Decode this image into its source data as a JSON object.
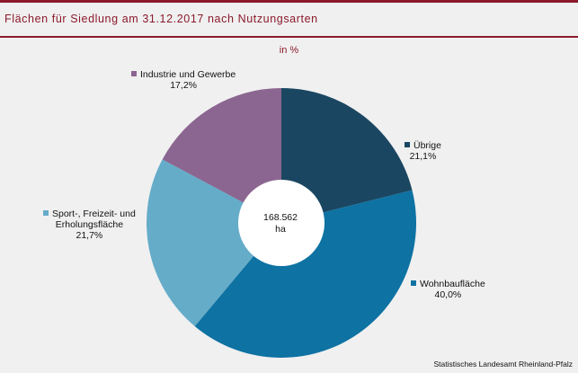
{
  "title": "Flächen für Siedlung  am 31.12.2017 nach Nutzungsarten",
  "source": "Statistisches Landesamt Rheinland-Pfalz",
  "center_label": {
    "value": "168.562",
    "unit": "ha"
  },
  "chart_data": {
    "type": "pie",
    "subtitle": "in %",
    "total": "168.562 ha",
    "slices": [
      {
        "name": "Übrige",
        "value": 21.1,
        "label": "21,1%",
        "color": "#1a4661"
      },
      {
        "name": "Wohnbaufläche",
        "value": 40.0,
        "label": "40,0%",
        "color": "#0e72a3"
      },
      {
        "name_line1": "Sport-, Freizeit- und",
        "name_line2": "Erholungsfläche",
        "name": "Sport-, Freizeit- und Erholungsfläche",
        "value": 21.7,
        "label": "21,7%",
        "color": "#65acc9"
      },
      {
        "name": "Industrie und Gewerbe",
        "value": 17.2,
        "label": "17,2%",
        "color": "#8b6690"
      }
    ]
  }
}
